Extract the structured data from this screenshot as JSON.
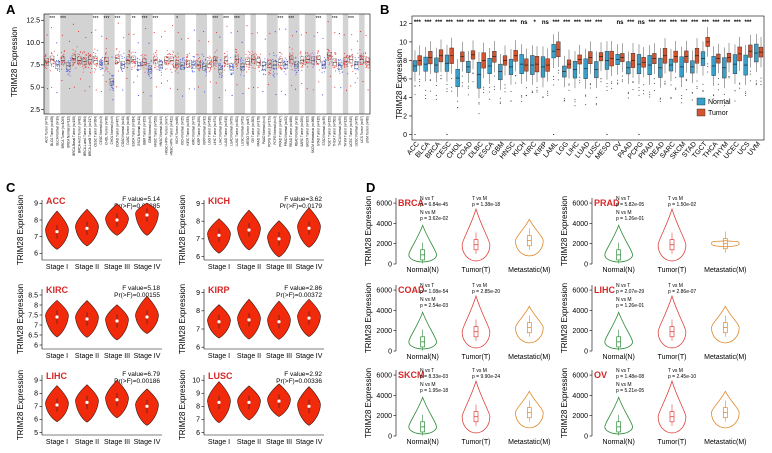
{
  "panels": {
    "a": {
      "letter": "A"
    },
    "b": {
      "letter": "B"
    },
    "c": {
      "letter": "C"
    },
    "d": {
      "letter": "D"
    }
  },
  "panel_a": {
    "ylabel": "TRIM28 Expression",
    "yticks": [
      "12.5",
      "10.0",
      "7.5",
      "5.0",
      "2.5"
    ],
    "groups": [
      {
        "label": "ACC Tumor (n=79)",
        "type": "t",
        "center": 7.8
      },
      {
        "label": "BLCA Tumor (n=408)",
        "type": "t",
        "center": 8.1
      },
      {
        "label": "BLCA Normal (n=19)",
        "type": "n",
        "center": 7.5
      },
      {
        "label": "BRCA Tumor (n=1093)",
        "type": "t",
        "center": 8.0
      },
      {
        "label": "BRCA Normal (n=112)",
        "type": "n",
        "center": 7.4
      },
      {
        "label": "BRCA-Basal Tumor (n=190)",
        "type": "t",
        "center": 8.2
      },
      {
        "label": "BRCA-Her2 Tumor (n=82)",
        "type": "t",
        "center": 8.0
      },
      {
        "label": "BRCA-LumA Tumor (n=564)",
        "type": "t",
        "center": 7.9
      },
      {
        "label": "BRCA-LumB Tumor (n=217)",
        "type": "t",
        "center": 8.1
      },
      {
        "label": "CESC Tumor (n=304)",
        "type": "t",
        "center": 8.0
      },
      {
        "label": "CESC Normal (n=3)",
        "type": "n",
        "center": 7.6
      },
      {
        "label": "CHOL Tumor (n=36)",
        "type": "t",
        "center": 7.9
      },
      {
        "label": "CHOL Normal (n=9)",
        "type": "n",
        "center": 5.6
      },
      {
        "label": "COAD Tumor (n=457)",
        "type": "t",
        "center": 8.2
      },
      {
        "label": "COAD Normal (n=41)",
        "type": "n",
        "center": 7.5
      },
      {
        "label": "DLBC Tumor (n=48)",
        "type": "t",
        "center": 8.0
      },
      {
        "label": "ESCA Tumor (n=184)",
        "type": "t",
        "center": 8.1
      },
      {
        "label": "ESCA Normal (n=11)",
        "type": "n",
        "center": 7.4
      },
      {
        "label": "GBM Tumor (n=153)",
        "type": "t",
        "center": 7.8
      },
      {
        "label": "GBM Normal (n=5)",
        "type": "n",
        "center": 7.0
      },
      {
        "label": "HNSC Tumor (n=520)",
        "type": "t",
        "center": 8.0
      },
      {
        "label": "HNSC Normal (n=44)",
        "type": "n",
        "center": 7.5
      },
      {
        "label": "HNSC-HPV+ Tumor (n=97)",
        "type": "t",
        "center": 8.0
      },
      {
        "label": "HNSC-HPV- Tumor (n=421)",
        "type": "t",
        "center": 8.0
      },
      {
        "label": "KICH Tumor (n=66)",
        "type": "t",
        "center": 7.6
      },
      {
        "label": "KICH Normal (n=25)",
        "type": "n",
        "center": 7.4
      },
      {
        "label": "KIRC Tumor (n=533)",
        "type": "t",
        "center": 7.6
      },
      {
        "label": "KIRC Normal (n=72)",
        "type": "n",
        "center": 7.5
      },
      {
        "label": "KIRP Tumor (n=290)",
        "type": "t",
        "center": 7.5
      },
      {
        "label": "KIRP Normal (n=32)",
        "type": "n",
        "center": 7.3
      },
      {
        "label": "LGG Tumor (n=516)",
        "type": "t",
        "center": 7.6
      },
      {
        "label": "LIHC Tumor (n=371)",
        "type": "t",
        "center": 8.0
      },
      {
        "label": "LIHC Normal (n=50)",
        "type": "n",
        "center": 7.0
      },
      {
        "label": "LUAD Tumor (n=515)",
        "type": "t",
        "center": 8.0
      },
      {
        "label": "LUAD Normal (n=59)",
        "type": "n",
        "center": 7.3
      },
      {
        "label": "LUSC Tumor (n=501)",
        "type": "t",
        "center": 8.1
      },
      {
        "label": "LUSC Normal (n=51)",
        "type": "n",
        "center": 7.3
      },
      {
        "label": "MESO Tumor (n=87)",
        "type": "t",
        "center": 7.9
      },
      {
        "label": "OV Tumor (n=303)",
        "type": "t",
        "center": 8.1
      },
      {
        "label": "PAAD Tumor (n=178)",
        "type": "t",
        "center": 7.8
      },
      {
        "label": "PAAD Normal (n=4)",
        "type": "n",
        "center": 7.4
      },
      {
        "label": "PCPG Tumor (n=179)",
        "type": "t",
        "center": 7.6
      },
      {
        "label": "PCPG Normal (n=3)",
        "type": "n",
        "center": 7.5
      },
      {
        "label": "PRAD Tumor (n=497)",
        "type": "t",
        "center": 7.8
      },
      {
        "label": "PRAD Normal (n=52)",
        "type": "n",
        "center": 7.5
      },
      {
        "label": "READ Tumor (n=166)",
        "type": "t",
        "center": 8.1
      },
      {
        "label": "READ Normal (n=10)",
        "type": "n",
        "center": 7.5
      },
      {
        "label": "SARC Tumor (n=259)",
        "type": "t",
        "center": 8.0
      },
      {
        "label": "SKCM Tumor (n=103)",
        "type": "t",
        "center": 8.1
      },
      {
        "label": "SKCM Metastasis (n=368)",
        "type": "m",
        "center": 8.0
      },
      {
        "label": "STAD Tumor (n=415)",
        "type": "t",
        "center": 8.1
      },
      {
        "label": "STAD Normal (n=35)",
        "type": "n",
        "center": 7.5
      },
      {
        "label": "TGCT Tumor (n=150)",
        "type": "t",
        "center": 8.5
      },
      {
        "label": "THCA Tumor (n=501)",
        "type": "t",
        "center": 7.8
      },
      {
        "label": "THCA Normal (n=59)",
        "type": "n",
        "center": 7.4
      },
      {
        "label": "THYM Tumor (n=120)",
        "type": "t",
        "center": 7.9
      },
      {
        "label": "UCEC Tumor (n=545)",
        "type": "t",
        "center": 8.1
      },
      {
        "label": "UCEC Normal (n=35)",
        "type": "n",
        "center": 7.5
      },
      {
        "label": "UCS Tumor (n=57)",
        "type": "t",
        "center": 8.1
      },
      {
        "label": "UVM Tumor (n=80)",
        "type": "t",
        "center": 7.9
      }
    ],
    "sig_marks": [
      {
        "after": 2,
        "text": "***"
      },
      {
        "after": 4,
        "text": "***"
      },
      {
        "after": 10,
        "text": "***"
      },
      {
        "after": 12,
        "text": "***"
      },
      {
        "after": 14,
        "text": "***"
      },
      {
        "after": 17,
        "text": "**"
      },
      {
        "after": 19,
        "text": "***"
      },
      {
        "after": 21,
        "text": "***"
      },
      {
        "after": 25,
        "text": "*"
      },
      {
        "after": 32,
        "text": "***"
      },
      {
        "after": 34,
        "text": "***"
      },
      {
        "after": 36,
        "text": "***"
      },
      {
        "after": 44,
        "text": "***"
      },
      {
        "after": 46,
        "text": "***"
      },
      {
        "after": 51,
        "text": "***"
      },
      {
        "after": 54,
        "text": "***"
      },
      {
        "after": 57,
        "text": "***"
      }
    ]
  },
  "panel_b": {
    "ylabel": "TRIM28 Expression",
    "yticks": [
      0,
      2,
      4,
      6,
      8,
      10,
      12
    ],
    "legend": [
      {
        "label": "Normal",
        "color": "#3a9fc8"
      },
      {
        "label": "Tumor",
        "color": "#d3542f"
      }
    ],
    "chart_data": {
      "type": "box",
      "categories": [
        "ACC",
        "BLCA",
        "BRCA",
        "CESC",
        "CHOL",
        "COAD",
        "DLBC",
        "ESCA",
        "GBM",
        "HNSC",
        "KICH",
        "KIRC",
        "KIRP",
        "LAML",
        "LGG",
        "LIHC",
        "LUAD",
        "LUSC",
        "MESO",
        "OV",
        "PAAD",
        "PCPG",
        "PRAD",
        "READ",
        "SARC",
        "SKCM",
        "STAD",
        "TGCT",
        "THCA",
        "THYM",
        "UCEC",
        "UCS",
        "UVM"
      ],
      "significance": [
        "***",
        "***",
        "***",
        "***",
        "***",
        "***",
        "***",
        "***",
        "***",
        "***",
        "ns",
        "*",
        "ns",
        "***",
        "***",
        "***",
        "***",
        "***",
        "",
        "ns",
        "***",
        "ns",
        "***",
        "***",
        "***",
        "***",
        "***",
        "***",
        "***",
        "***",
        "***",
        "***",
        ""
      ],
      "normal_median": [
        7.4,
        7.6,
        7.5,
        7.7,
        6.1,
        7.3,
        6.5,
        7.4,
        6.8,
        7.3,
        7.6,
        7.5,
        7.3,
        9.0,
        6.8,
        7.0,
        7.1,
        7.0,
        8.0,
        8.1,
        7.2,
        7.6,
        7.5,
        7.2,
        7.5,
        7.3,
        7.3,
        8.2,
        7.4,
        7.2,
        7.6,
        7.5,
        8.8
      ],
      "tumor_median": [
        8.0,
        8.3,
        8.5,
        8.5,
        8.4,
        8.6,
        8.0,
        8.4,
        8.0,
        8.5,
        7.5,
        7.6,
        7.5,
        9.2,
        7.6,
        8.1,
        8.3,
        8.4,
        8.2,
        8.3,
        8.0,
        7.8,
        8.2,
        8.5,
        8.4,
        8.4,
        8.5,
        10.0,
        8.2,
        8.3,
        8.7,
        9.0,
        8.9
      ],
      "ylabel": "TRIM28 Expression",
      "ylim": [
        0,
        12
      ]
    }
  },
  "panel_c": {
    "ylabel": "TRIM28 Expression",
    "stages": [
      "Stage I",
      "Stage II",
      "Stage III",
      "Stage IV"
    ],
    "chart_data": [
      {
        "type": "violin",
        "title": "ACC",
        "f_value": "F value=5.14",
        "p_value": "Pr(>F)=0.00285",
        "yticks": [
          6,
          7,
          8,
          9
        ],
        "ylim": [
          5.6,
          9.2
        ],
        "medians": [
          7.3,
          7.5,
          8.0,
          8.3
        ]
      },
      {
        "type": "violin",
        "title": "KICH",
        "f_value": "F value=3.62",
        "p_value": "Pr(>F)=0.0179",
        "yticks": [
          6,
          7,
          8,
          9
        ],
        "ylim": [
          5.8,
          9.2
        ],
        "medians": [
          7.2,
          7.5,
          7.0,
          7.6
        ]
      },
      {
        "type": "violin",
        "title": "KIRC",
        "f_value": "F value=5.18",
        "p_value": "Pr(>F)=0.00155",
        "yticks": [
          6.0,
          6.5,
          7.0,
          7.5,
          8.0,
          8.5
        ],
        "ylim": [
          5.8,
          8.8
        ],
        "medians": [
          7.4,
          7.3,
          7.2,
          7.4
        ]
      },
      {
        "type": "violin",
        "title": "KIRP",
        "f_value": "F value=2.86",
        "p_value": "Pr(>F)=0.00372",
        "yticks": [
          6,
          7,
          8,
          9
        ],
        "ylim": [
          5.9,
          9.2
        ],
        "medians": [
          7.4,
          7.5,
          7.4,
          7.6
        ]
      },
      {
        "type": "violin",
        "title": "LIHC",
        "f_value": "F value=6.79",
        "p_value": "Pr(>F)=0.00186",
        "yticks": [
          5,
          6,
          7,
          8,
          9
        ],
        "ylim": [
          4.8,
          9.4
        ],
        "medians": [
          7.1,
          7.3,
          7.5,
          7.0
        ]
      },
      {
        "type": "violin",
        "title": "LUSC",
        "f_value": "F value=2.92",
        "p_value": "Pr(>F)=0.00336",
        "yticks": [
          6,
          7,
          8,
          9,
          10
        ],
        "ylim": [
          5.8,
          10.4
        ],
        "medians": [
          8.3,
          8.3,
          8.4,
          8.0
        ]
      }
    ]
  },
  "panel_d": {
    "ylabel": "TRIM28 Expression",
    "group_labels": [
      "Normal(N)",
      "Tumor(T)",
      "Metastatic(M)"
    ],
    "group_colors": [
      "#2e8b3a",
      "#e0413a",
      "#e08a2a"
    ],
    "chart_data": [
      {
        "type": "violin",
        "title": "BRCA",
        "yticks": [
          0,
          2000,
          4000,
          6000
        ],
        "ylim": [
          0,
          6500
        ],
        "stats": [
          "N vs T",
          "p = 6.84e-45",
          "T vs M",
          "p = 1.38e-18",
          "N vs M",
          "p = 3.62e-02"
        ]
      },
      {
        "type": "violin",
        "title": "PRAD",
        "yticks": [
          0,
          2000,
          4000,
          6000
        ],
        "ylim": [
          0,
          6500
        ],
        "stats": [
          "N vs T",
          "p = 5.82e-05",
          "T vs M",
          "p = 1.50e-02",
          "N vs M",
          "p = 1.26e-01"
        ]
      },
      {
        "type": "violin",
        "title": "COAD",
        "yticks": [
          0,
          2000,
          4000,
          6000
        ],
        "ylim": [
          0,
          6500
        ],
        "stats": [
          "N vs T",
          "p = 1.08e-54",
          "T vs M",
          "p = 2.85e-20",
          "N vs M",
          "p = 2.54e-03"
        ]
      },
      {
        "type": "violin",
        "title": "LIHC",
        "yticks": [
          0,
          2000,
          4000,
          6000
        ],
        "ylim": [
          0,
          6500
        ],
        "stats": [
          "N vs T",
          "p = 2.07e-29",
          "T vs M",
          "p = 2.86e-07",
          "N vs M",
          "p = 1.26e-01"
        ]
      },
      {
        "type": "violin",
        "title": "SKCM",
        "yticks": [
          0,
          2000,
          4000,
          6000
        ],
        "ylim": [
          0,
          6500
        ],
        "stats": [
          "N vs T",
          "p = 8.33e-03",
          "T vs M",
          "p = 9.90e-24",
          "N vs M",
          "p = 1.95e-18"
        ]
      },
      {
        "type": "violin",
        "title": "OV",
        "yticks": [
          0,
          2000,
          4000,
          6000
        ],
        "ylim": [
          0,
          6500
        ],
        "stats": [
          "N vs T",
          "p = 1.48e-08",
          "T vs M",
          "p = 2.45e-10",
          "N vs M",
          "p = 5.21e-05"
        ]
      }
    ]
  }
}
